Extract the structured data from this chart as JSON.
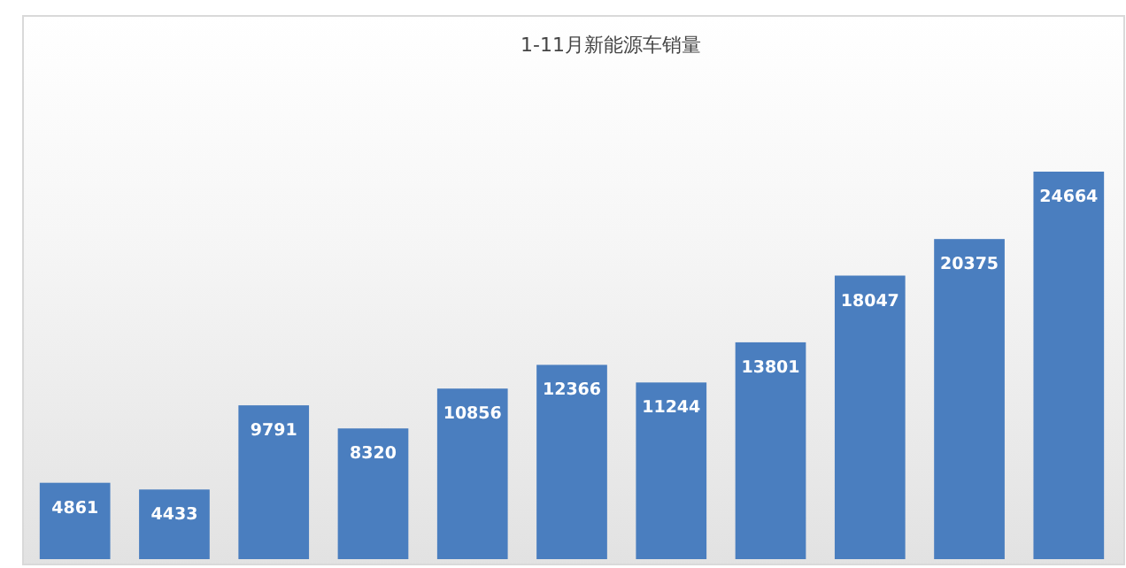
{
  "chart_data": {
    "type": "bar",
    "title": "1-11月新能源车销量",
    "categories": [
      null,
      null,
      null,
      null,
      null,
      null,
      null,
      null,
      null,
      null,
      null
    ],
    "values": [
      4861,
      4433,
      9791,
      8320,
      10856,
      12366,
      11244,
      13801,
      18047,
      20375,
      24664
    ],
    "color": "#4a7ebf",
    "data_labels": true
  }
}
